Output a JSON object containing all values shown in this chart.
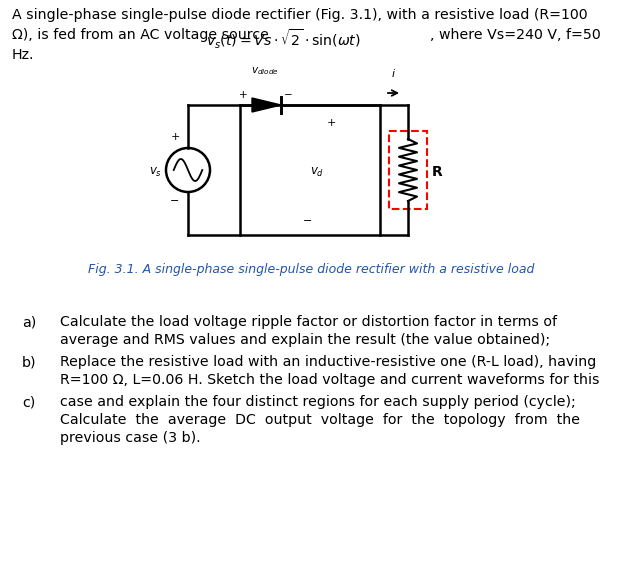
{
  "bg_color": "#ffffff",
  "fig_caption": "Fig. 3.1. A single-phase single-pulse diode rectifier with a resistive load",
  "fig_caption_color": "#2255aa",
  "line1": "A single-phase single-pulse diode rectifier (Fig. 3.1), with a resistive load (R=100",
  "line2_plain": "Ω), is fed from an AC voltage source ",
  "line2_math": "$v_s(t) = Vs \\cdot \\sqrt{2} \\cdot \\sin(\\omega t)$",
  "line2_end": ", where Vs=240 V, f=50",
  "line3": "Hz.",
  "qa": "a)",
  "qb": "b)",
  "qc": "c)",
  "ta1": "Calculate the load voltage ripple factor or distortion factor in terms of",
  "ta2": "average and RMS values and explain the result (the value obtained);",
  "tb1": "Replace the resistive load with an inductive-resistive one (R-L load), having",
  "tb2": "R=100 Ω, L=0.06 H. Sketch the load voltage and current waveforms for this",
  "tc1": "case and explain the four distinct regions for each supply period (cycle);",
  "tc2": "Calculate  the  average  DC  output  voltage  for  the  topology  from  the",
  "tc3": "previous case (3 b)."
}
